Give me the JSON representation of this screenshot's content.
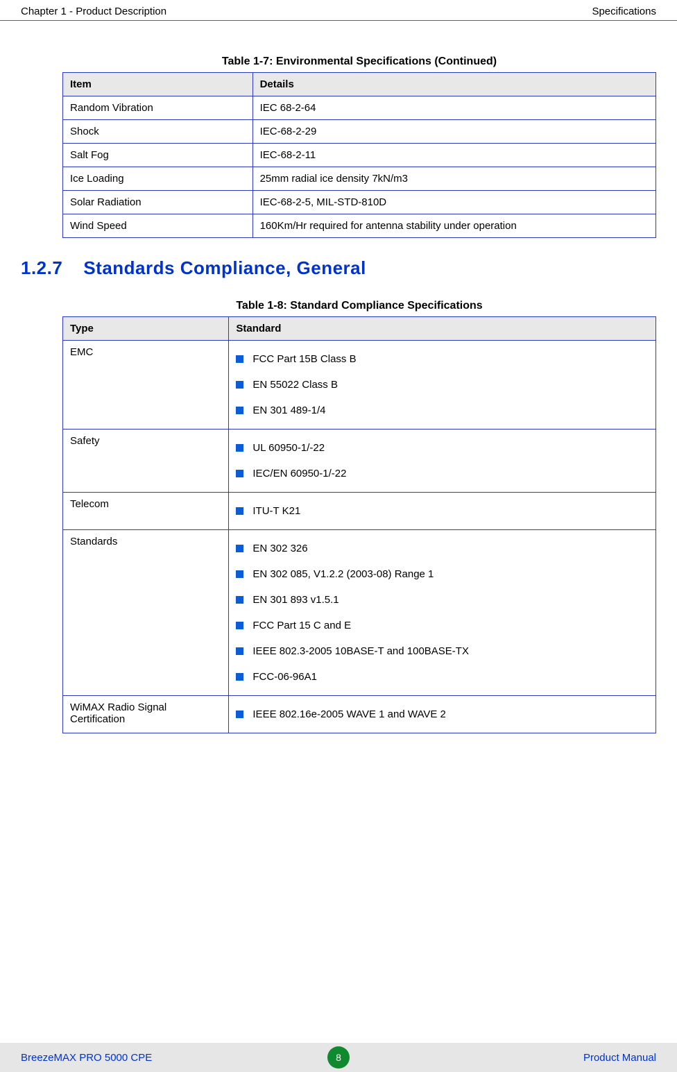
{
  "header": {
    "left": "Chapter 1 - Product Description",
    "right": "Specifications"
  },
  "table7": {
    "caption": "Table 1-7: Environmental Specifications (Continued)",
    "headers": {
      "item": "Item",
      "details": "Details"
    },
    "rows": [
      {
        "item": "Random Vibration",
        "details": "IEC 68-2-64"
      },
      {
        "item": "Shock",
        "details": "IEC-68-2-29"
      },
      {
        "item": "Salt Fog",
        "details": "IEC-68-2-11"
      },
      {
        "item": "Ice Loading",
        "details": "25mm radial ice density 7kN/m3"
      },
      {
        "item": "Solar Radiation",
        "details": "IEC-68-2-5, MIL-STD-810D"
      },
      {
        "item": "Wind Speed",
        "details": "160Km/Hr required for antenna stability under operation"
      }
    ]
  },
  "section": {
    "number": "1.2.7",
    "title": "Standards Compliance, General"
  },
  "table8": {
    "caption": "Table 1-8: Standard Compliance Specifications",
    "headers": {
      "type": "Type",
      "standard": "Standard"
    },
    "rows": [
      {
        "type": "EMC",
        "standards": [
          "FCC Part 15B Class B",
          "EN 55022 Class B",
          "EN 301 489-1/4"
        ]
      },
      {
        "type": "Safety",
        "standards": [
          "UL 60950-1/-22",
          "IEC/EN 60950-1/-22"
        ]
      },
      {
        "type": "Telecom",
        "standards": [
          "ITU-T K21"
        ]
      },
      {
        "type": "Standards",
        "standards": [
          "EN 302 326",
          "EN 302 085, V1.2.2 (2003-08) Range 1",
          "EN 301 893 v1.5.1",
          "FCC Part 15 C and E",
          "IEEE 802.3-2005 10BASE-T and 100BASE-TX",
          "FCC-06-96A1"
        ]
      },
      {
        "type": "WiMAX Radio Signal Certification",
        "standards": [
          "IEEE 802.16e-2005 WAVE 1 and WAVE 2"
        ]
      }
    ]
  },
  "footer": {
    "left": "BreezeMAX PRO 5000 CPE",
    "page": "8",
    "right": "Product Manual"
  },
  "colors": {
    "heading": "#0033cc",
    "table_border": "#2b3ac0",
    "bullet": "#0b5cd8",
    "header_rule": "#009933",
    "footer_bg": "#e6e6e6",
    "badge_bg": "#0f8a2f"
  }
}
